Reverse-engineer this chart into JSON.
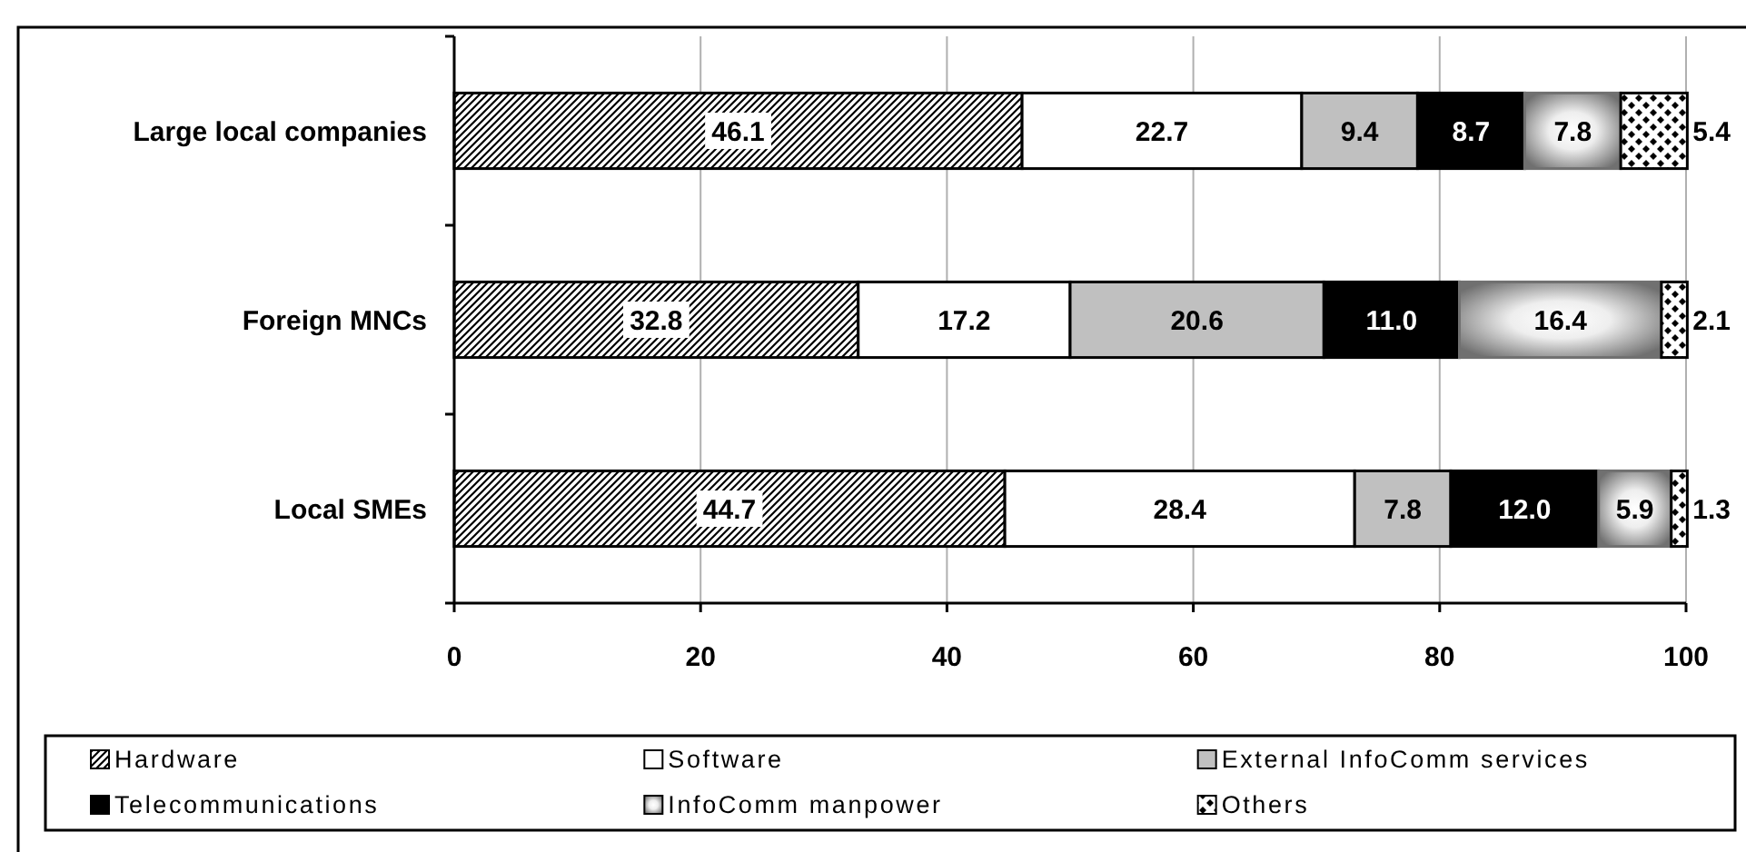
{
  "chart_data": {
    "type": "bar",
    "orientation": "horizontal",
    "stacked": true,
    "categories": [
      "Large local companies",
      "Foreign MNCs",
      "Local SMEs"
    ],
    "series": [
      {
        "name": "Hardware",
        "color": "#000000",
        "values": [
          46.1,
          32.8,
          44.7
        ],
        "value_labels": [
          "46.1",
          "32.8",
          "44.7"
        ]
      },
      {
        "name": "Software",
        "color": "#ffffff",
        "values": [
          22.7,
          17.2,
          28.4
        ],
        "value_labels": [
          "22.7",
          "17.2",
          "28.4"
        ]
      },
      {
        "name": "External InfoComm services",
        "color": "#c0c0c0",
        "values": [
          9.4,
          20.6,
          7.8
        ],
        "value_labels": [
          "9.4",
          "20.6",
          "7.8"
        ]
      },
      {
        "name": "Telecommunications",
        "color": "#000000",
        "values": [
          8.7,
          11.0,
          12.0
        ],
        "value_labels": [
          "8.7",
          "11.0",
          "12.0"
        ]
      },
      {
        "name": "InfoComm manpower",
        "color": "#707070",
        "values": [
          7.8,
          16.4,
          5.9
        ],
        "value_labels": [
          "7.8",
          "16.4",
          "5.9"
        ]
      },
      {
        "name": "Others",
        "color": "#000000",
        "values": [
          5.4,
          2.1,
          1.3
        ],
        "value_labels": [
          "5.4",
          "2.1",
          "1.3"
        ]
      }
    ],
    "xlim": [
      0,
      100
    ],
    "xticks": [
      0,
      20,
      40,
      60,
      80,
      100
    ],
    "grid": "x",
    "legend": "bottom"
  }
}
